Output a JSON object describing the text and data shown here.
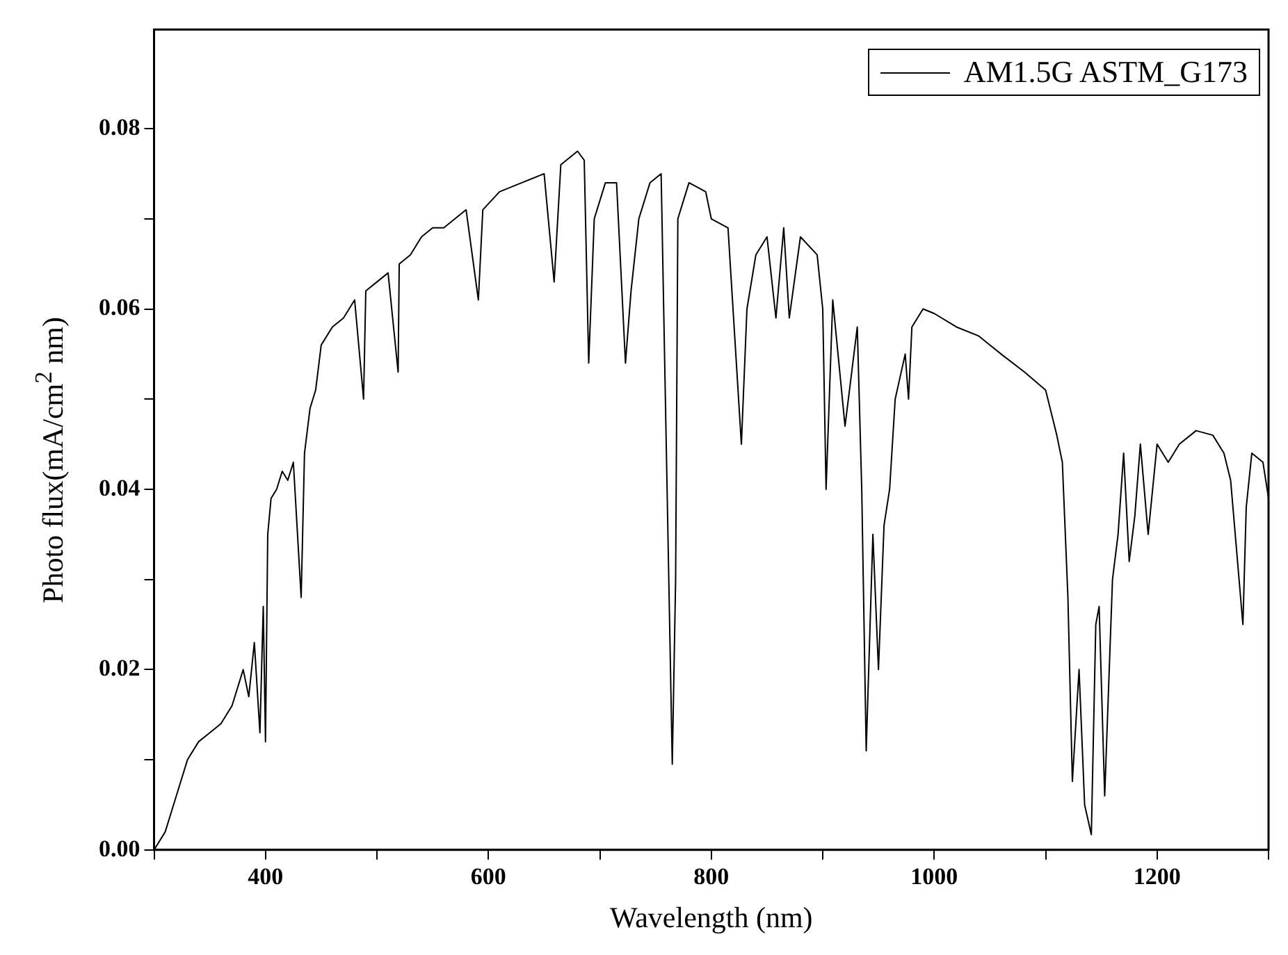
{
  "chart_data": {
    "type": "line",
    "xlabel": "Wavelength (nm)",
    "ylabel": "Photo flux(mA/cm$^{2}$ nm)",
    "xlim": [
      300,
      1300
    ],
    "xticks": [
      {
        "value": 300,
        "label": null
      },
      400,
      {
        "value": 500,
        "label": null
      },
      600,
      {
        "value": 700,
        "label": null
      },
      800,
      {
        "value": 900,
        "label": null
      },
      1000,
      {
        "value": 1100,
        "label": null
      },
      1200,
      {
        "value": 1300,
        "label": null
      }
    ],
    "ylim": [
      0,
      0.091
    ],
    "yticks": [
      {
        "value": 0,
        "label": "0.00"
      },
      {
        "value": 0.01,
        "label": null
      },
      {
        "value": 0.02,
        "label": "0.02"
      },
      {
        "value": 0.03,
        "label": null
      },
      {
        "value": 0.04,
        "label": "0.04"
      },
      {
        "value": 0.05,
        "label": null
      },
      {
        "value": 0.06,
        "label": "0.06"
      },
      {
        "value": 0.07,
        "label": null
      },
      {
        "value": 0.08,
        "label": "0.08"
      }
    ],
    "grid": false,
    "legend": "top right",
    "marker": "none",
    "line_style": "solid",
    "series": [
      {
        "name": "AM1.5G ASTM_G173",
        "color": "#000000",
        "x": [
          300,
          310,
          320,
          330,
          340,
          350,
          360,
          370,
          380,
          385,
          390,
          395,
          398,
          400,
          402,
          405,
          410,
          415,
          420,
          425,
          432,
          435,
          440,
          445,
          450,
          460,
          470,
          480,
          488,
          490,
          500,
          510,
          519,
          520,
          530,
          540,
          550,
          560,
          570,
          580,
          591,
          595,
          610,
          630,
          650,
          659,
          665,
          680,
          686,
          690,
          695,
          705,
          715,
          723,
          728,
          735,
          745,
          755,
          765,
          768,
          770,
          780,
          795,
          800,
          815,
          822,
          827,
          832,
          840,
          850,
          858,
          865,
          870,
          880,
          895,
          900,
          903,
          909,
          920,
          931,
          935,
          939,
          945,
          950,
          955,
          960,
          965,
          974,
          977,
          980,
          990,
          1000,
          1020,
          1040,
          1060,
          1081,
          1100,
          1110,
          1115,
          1120,
          1124,
          1130,
          1135,
          1141,
          1145,
          1148,
          1153,
          1160,
          1165,
          1170,
          1175,
          1180,
          1185,
          1192,
          1200,
          1210,
          1220,
          1235,
          1250,
          1260,
          1266,
          1277,
          1280,
          1285,
          1295,
          1300
        ],
        "values": [
          0,
          0.002,
          0.006,
          0.01,
          0.012,
          0.013,
          0.014,
          0.016,
          0.02,
          0.017,
          0.023,
          0.013,
          0.027,
          0.012,
          0.035,
          0.039,
          0.04,
          0.042,
          0.041,
          0.043,
          0.028,
          0.044,
          0.049,
          0.051,
          0.056,
          0.058,
          0.059,
          0.061,
          0.05,
          0.062,
          0.063,
          0.064,
          0.053,
          0.065,
          0.066,
          0.068,
          0.069,
          0.069,
          0.07,
          0.071,
          0.061,
          0.071,
          0.073,
          0.074,
          0.075,
          0.063,
          0.076,
          0.0775,
          0.0765,
          0.054,
          0.07,
          0.074,
          0.074,
          0.054,
          0.062,
          0.07,
          0.074,
          0.075,
          0.0095,
          0.03,
          0.07,
          0.074,
          0.073,
          0.07,
          0.069,
          0.055,
          0.045,
          0.06,
          0.066,
          0.068,
          0.059,
          0.069,
          0.059,
          0.068,
          0.066,
          0.06,
          0.04,
          0.061,
          0.047,
          0.058,
          0.04,
          0.011,
          0.035,
          0.02,
          0.036,
          0.04,
          0.05,
          0.055,
          0.05,
          0.058,
          0.06,
          0.0595,
          0.058,
          0.057,
          0.055,
          0.053,
          0.051,
          0.046,
          0.043,
          0.028,
          0.0076,
          0.02,
          0.005,
          0.0017,
          0.025,
          0.027,
          0.006,
          0.03,
          0.035,
          0.044,
          0.032,
          0.037,
          0.045,
          0.035,
          0.045,
          0.043,
          0.045,
          0.0465,
          0.046,
          0.044,
          0.041,
          0.025,
          0.038,
          0.044,
          0.043,
          0.039
        ]
      }
    ]
  }
}
